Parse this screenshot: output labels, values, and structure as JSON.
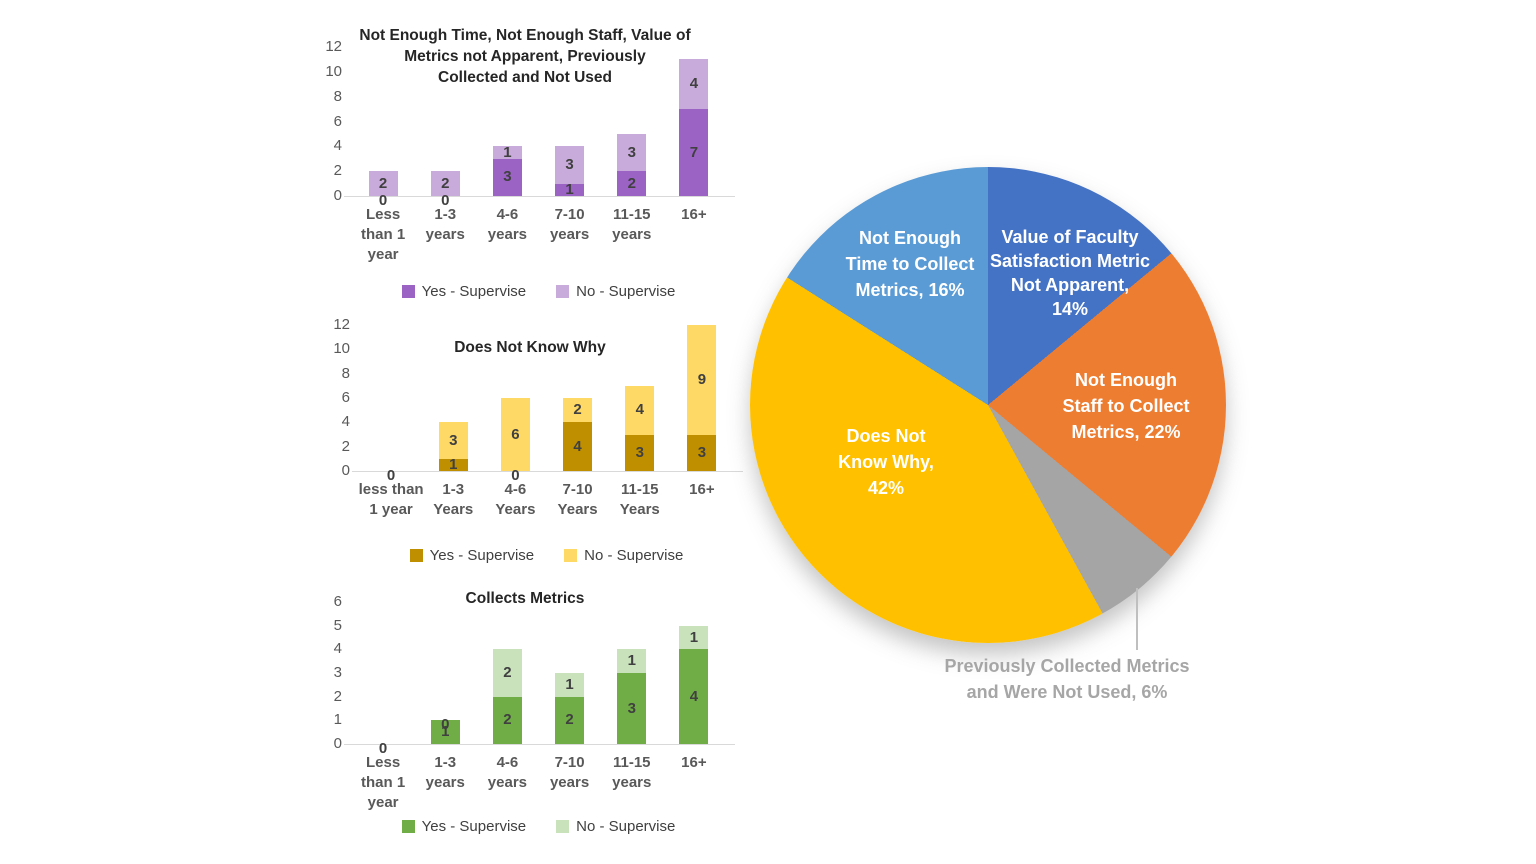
{
  "chart_data": [
    {
      "type": "bar",
      "stacked": true,
      "title": "Not Enough Time, Not Enough Staff, Value of\nMetrics not Apparent, Previously\nCollected and Not Used",
      "categories": [
        "Less\nthan 1\nyear",
        "1-3\nyears",
        "4-6\nyears",
        "7-10\nyears",
        "11-15\nyears",
        "16+"
      ],
      "series": [
        {
          "name": "Yes - Supervise",
          "color": "#9A63C4",
          "values": [
            0,
            0,
            3,
            1,
            2,
            7
          ]
        },
        {
          "name": "No - Supervise",
          "color": "#C8ABDA",
          "values": [
            2,
            2,
            1,
            3,
            3,
            4
          ]
        }
      ],
      "ylim": [
        0,
        12
      ],
      "yticks": [
        0,
        2,
        4,
        6,
        8,
        10,
        12
      ],
      "grid": false,
      "legend_position": "bottom"
    },
    {
      "type": "bar",
      "stacked": true,
      "title": "Does Not Know Why",
      "categories": [
        "less than\n1 year",
        "1-3\nYears",
        "4-6\nYears",
        "7-10\nYears",
        "11-15\nYears",
        "16+"
      ],
      "series": [
        {
          "name": "Yes - Supervise",
          "color": "#BF8F00",
          "values": [
            0,
            1,
            0,
            4,
            3,
            3
          ]
        },
        {
          "name": "No -  Supervise",
          "color": "#FFD966",
          "values": [
            0,
            3,
            6,
            2,
            4,
            9
          ]
        }
      ],
      "ylim": [
        0,
        12
      ],
      "yticks": [
        0,
        2,
        4,
        6,
        8,
        10,
        12
      ],
      "grid": false,
      "legend_position": "bottom"
    },
    {
      "type": "bar",
      "stacked": true,
      "title": "Collects Metrics",
      "categories": [
        "Less\nthan 1\nyear",
        "1-3\nyears",
        "4-6\nyears",
        "7-10\nyears",
        "11-15\nyears",
        "16+"
      ],
      "series": [
        {
          "name": "Yes - Supervise",
          "color": "#70AD47",
          "values": [
            0,
            1,
            2,
            2,
            3,
            4
          ]
        },
        {
          "name": "No - Supervise",
          "color": "#C9E2BC",
          "values": [
            0,
            0,
            2,
            1,
            1,
            1
          ]
        }
      ],
      "ylim": [
        0,
        6
      ],
      "yticks": [
        0,
        1,
        2,
        3,
        4,
        5,
        6
      ],
      "grid": false,
      "legend_position": "bottom"
    },
    {
      "type": "pie",
      "start_angle_deg": 0,
      "direction": "clockwise",
      "slices": [
        {
          "name": "Value of Faculty Satisfaction Metric Not Apparent",
          "pct": 14,
          "color": "#4472C4",
          "lines": [
            "Value of Faculty",
            "Satisfaction Metric",
            "Not Apparent,",
            "14%"
          ]
        },
        {
          "name": "Not Enough Staff to Collect Metrics",
          "pct": 22,
          "color": "#ED7D31",
          "lines": [
            "Not Enough",
            "Staff to Collect",
            "Metrics, 22%"
          ]
        },
        {
          "name": "Previously Collected Metrics and Were Not Used",
          "pct": 6,
          "color": "#A5A5A5",
          "lines": [
            "Previously Collected Metrics",
            "and Were Not Used, 6%"
          ]
        },
        {
          "name": "Does Not Know Why",
          "pct": 42,
          "color": "#FFC000",
          "lines": [
            "Does Not",
            "Know Why,",
            "42%"
          ]
        },
        {
          "name": "Not Enough Time to Collect Metrics",
          "pct": 16,
          "color": "#5B9BD5",
          "lines": [
            "Not Enough",
            "Time to Collect",
            "Metrics, 16%"
          ]
        }
      ]
    }
  ]
}
